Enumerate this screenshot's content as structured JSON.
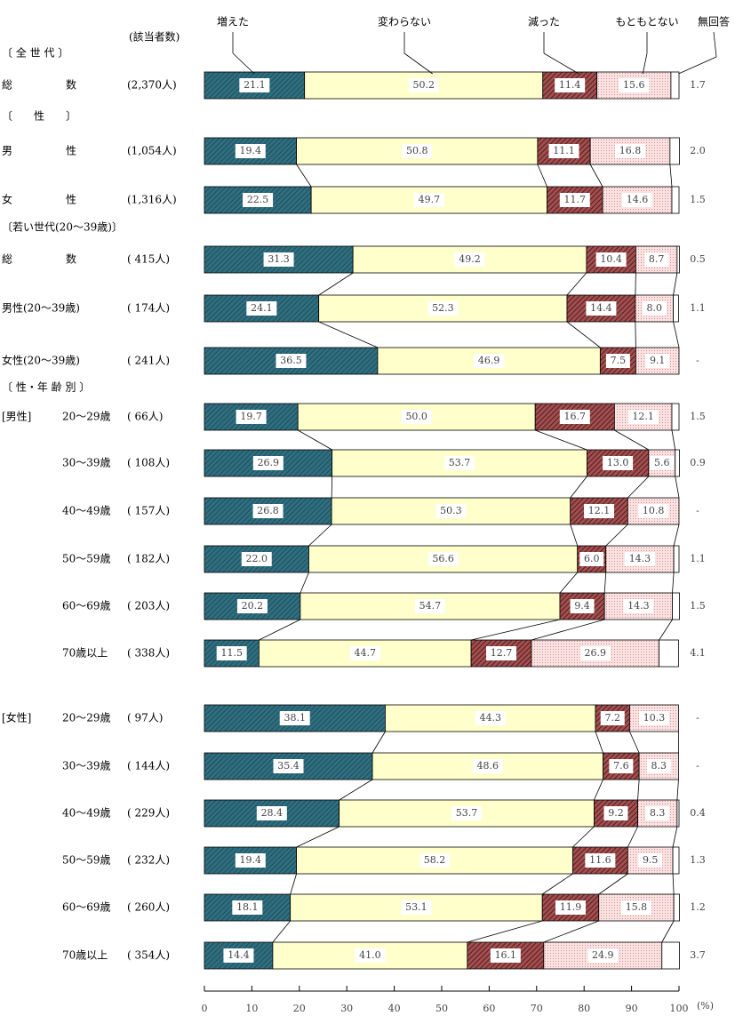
{
  "chart_data": {
    "type": "stacked-bar-horizontal",
    "count_header": "(該当者数)",
    "section_titles": [
      "〔 全 世 代 〕",
      "〔　　性　　〕",
      null,
      "〔若い世代(20～39歳)〕",
      null,
      null,
      "〔 性・年 齢 別 〕",
      null,
      null,
      null,
      null,
      null,
      null,
      null,
      null,
      null,
      null,
      null
    ],
    "group_labels": [
      null,
      null,
      null,
      null,
      null,
      null,
      "[男性]",
      null,
      null,
      null,
      null,
      null,
      "[女性]",
      null,
      null,
      null,
      null,
      null
    ],
    "categories": [
      "総　　　　　数",
      "男　　　　　性",
      "女　　　　　性",
      "総　　　　　数",
      "男性(20～39歳)",
      "女性(20～39歳)",
      "20～29歳",
      "30～39歳",
      "40～49歳",
      "50～59歳",
      "60～69歳",
      "70歳以上",
      "20～29歳",
      "30～39歳",
      "40～49歳",
      "50～59歳",
      "60～69歳",
      "70歳以上"
    ],
    "counts": [
      "(2,370人)",
      "(1,054人)",
      "(1,316人)",
      "( 415人)",
      "( 174人)",
      "( 241人)",
      "(  66人)",
      "( 108人)",
      "( 157人)",
      "( 182人)",
      "( 203人)",
      "( 338人)",
      "(  97人)",
      "( 144人)",
      "( 229人)",
      "( 232人)",
      "( 260人)",
      "( 354人)"
    ],
    "series": [
      {
        "name": "増えた",
        "color": "#2f6f80",
        "values": [
          21.1,
          19.4,
          22.5,
          31.3,
          24.1,
          36.5,
          19.7,
          26.9,
          26.8,
          22.0,
          20.2,
          11.5,
          38.1,
          35.4,
          28.4,
          19.4,
          18.1,
          14.4
        ],
        "value_labels": [
          "21.1",
          "19.4",
          "22.5",
          "31.3",
          "24.1",
          "36.5",
          "19.7",
          "26.9",
          "26.8",
          "22.0",
          "20.2",
          "11.5",
          "38.1",
          "35.4",
          "28.4",
          "19.4",
          "18.1",
          "14.4"
        ]
      },
      {
        "name": "変わらない",
        "color": "#ffffcc",
        "values": [
          50.2,
          50.8,
          49.7,
          49.2,
          52.3,
          46.9,
          50.0,
          53.7,
          50.3,
          56.6,
          54.7,
          44.7,
          44.3,
          48.6,
          53.7,
          58.2,
          53.1,
          41.0
        ],
        "value_labels": [
          "50.2",
          "50.8",
          "49.7",
          "49.2",
          "52.3",
          "46.9",
          "50.0",
          "53.7",
          "50.3",
          "56.6",
          "54.7",
          "44.7",
          "44.3",
          "48.6",
          "53.7",
          "58.2",
          "53.1",
          "41.0"
        ]
      },
      {
        "name": "減った",
        "color": "#7a2a2a",
        "values": [
          11.4,
          11.1,
          11.7,
          10.4,
          14.4,
          7.5,
          16.7,
          13.0,
          12.1,
          6.0,
          9.4,
          12.7,
          7.2,
          7.6,
          9.2,
          11.6,
          11.9,
          16.1
        ],
        "value_labels": [
          "11.4",
          "11.1",
          "11.7",
          "10.4",
          "14.4",
          "7.5",
          "16.7",
          "13.0",
          "12.1",
          "6.0",
          "9.4",
          "12.7",
          "7.2",
          "7.6",
          "9.2",
          "11.6",
          "11.9",
          "16.1"
        ]
      },
      {
        "name": "もともとない",
        "color": "#f6d6d6",
        "values": [
          15.6,
          16.8,
          14.6,
          8.7,
          8.0,
          9.1,
          12.1,
          5.6,
          10.8,
          14.3,
          14.3,
          26.9,
          10.3,
          8.3,
          8.3,
          9.5,
          15.8,
          24.9
        ],
        "value_labels": [
          "15.6",
          "16.8",
          "14.6",
          "8.7",
          "8.0",
          "9.1",
          "12.1",
          "5.6",
          "10.8",
          "14.3",
          "14.3",
          "26.9",
          "10.3",
          "8.3",
          "8.3",
          "9.5",
          "15.8",
          "24.9"
        ]
      },
      {
        "name": "無回答",
        "color": "#ffffff",
        "values": [
          1.7,
          2.0,
          1.5,
          0.5,
          1.1,
          null,
          1.5,
          0.9,
          null,
          1.1,
          1.5,
          4.1,
          null,
          null,
          0.4,
          1.3,
          1.2,
          3.7
        ],
        "value_labels": [
          "1.7",
          "2.0",
          "1.5",
          "0.5",
          "1.1",
          "-",
          "1.5",
          "0.9",
          "-",
          "1.1",
          "1.5",
          "4.1",
          "-",
          "-",
          "0.4",
          "1.3",
          "1.2",
          "3.7"
        ]
      }
    ],
    "xlim": [
      0,
      100
    ],
    "xticks": [
      0,
      10,
      20,
      30,
      40,
      50,
      60,
      70,
      80,
      90,
      100
    ],
    "x_unit": "(%)"
  }
}
